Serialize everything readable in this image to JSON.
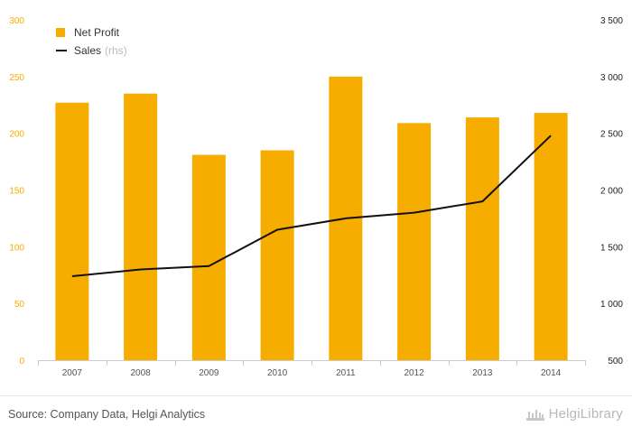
{
  "chart_data": {
    "type": "bar",
    "categories": [
      "2007",
      "2008",
      "2009",
      "2010",
      "2011",
      "2012",
      "2013",
      "2014"
    ],
    "series": [
      {
        "name": "Net Profit",
        "type": "bar",
        "axis": "left",
        "color": "#f7ad00",
        "values": [
          227,
          235,
          181,
          185,
          250,
          209,
          214,
          218
        ]
      },
      {
        "name": "Sales",
        "name_note": "(rhs)",
        "type": "line",
        "axis": "right",
        "color": "#111111",
        "values": [
          1240,
          1300,
          1330,
          1650,
          1750,
          1800,
          1900,
          2480
        ]
      }
    ],
    "left_axis": {
      "ylim": [
        0,
        300
      ],
      "ticks": [
        0,
        50,
        100,
        150,
        200,
        250,
        300
      ],
      "tick_labels": [
        "0",
        "50",
        "100",
        "150",
        "200",
        "250",
        "300"
      ],
      "color": "#f7ad00"
    },
    "right_axis": {
      "ylim": [
        500,
        3500
      ],
      "ticks": [
        500,
        1000,
        1500,
        2000,
        2500,
        3000,
        3500
      ],
      "tick_labels": [
        "500",
        "1 000",
        "1 500",
        "2 000",
        "2 500",
        "3 000",
        "3 500"
      ],
      "color": "#111111"
    },
    "grid": false,
    "legend": "top-left"
  },
  "legend": {
    "net_profit_label": "Net Profit",
    "sales_label": "Sales",
    "sales_note": "(rhs)"
  },
  "footer": {
    "source": "Source: Company Data, Helgi Analytics",
    "brand": "HelgiLibrary"
  }
}
